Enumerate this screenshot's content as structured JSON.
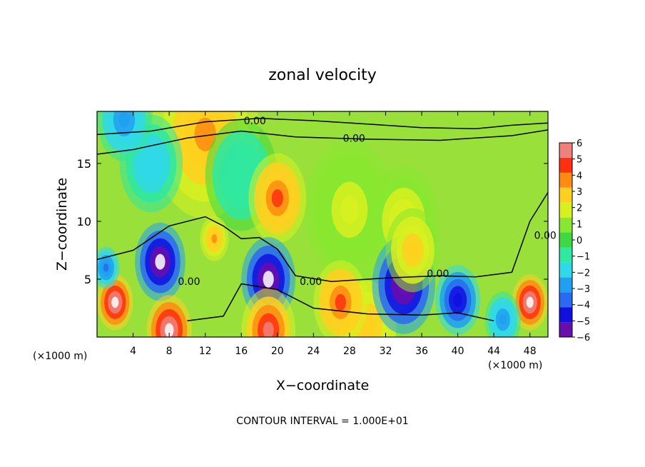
{
  "chart_data": {
    "type": "heatmap",
    "title": "zonal velocity",
    "xlabel": "X−coordinate",
    "ylabel": "Z−coordinate",
    "x_unit_left": "(×1000 m)",
    "x_unit_right": "(×1000 m)",
    "xlim": [
      0,
      50
    ],
    "ylim": [
      0,
      19.5
    ],
    "xticks": [
      4,
      8,
      12,
      16,
      20,
      24,
      28,
      32,
      36,
      40,
      44,
      48
    ],
    "yticks": [
      5,
      10,
      15
    ],
    "footer": "CONTOUR INTERVAL = 1.000E+01",
    "colorbar": {
      "min": -6,
      "max": 6,
      "ticks": [
        6,
        5,
        4,
        3,
        2,
        1,
        0,
        -1,
        -2,
        -3,
        -4,
        -5,
        -6
      ],
      "colors": [
        "#6a0dad",
        "#1010e0",
        "#2a6af0",
        "#20a0f0",
        "#30d8e8",
        "#30e8a0",
        "#40d840",
        "#88e830",
        "#d8f020",
        "#ffd020",
        "#ff8c10",
        "#ff3010",
        "#f0807a"
      ]
    },
    "contour_labels": [
      {
        "text": "0.00",
        "x": 17.5,
        "y": 18.7
      },
      {
        "text": "0.00",
        "x": 28.5,
        "y": 17.2
      },
      {
        "text": "0.00",
        "x": 10.2,
        "y": 4.8
      },
      {
        "text": "0.00",
        "x": 23.7,
        "y": 4.8
      },
      {
        "text": "0.00",
        "x": 37.8,
        "y": 5.5
      },
      {
        "text": "0.00",
        "x": 49.7,
        "y": 8.8
      }
    ],
    "field_features": [
      {
        "x": 20,
        "y": 12,
        "r": 3.2,
        "v": 4.5
      },
      {
        "x": 13,
        "y": 8.5,
        "r": 1.6,
        "v": 3.5
      },
      {
        "x": 35,
        "y": 7.5,
        "r": 3.0,
        "v": 2.8
      },
      {
        "x": 34,
        "y": 10,
        "r": 4.0,
        "v": 2.0
      },
      {
        "x": 28,
        "y": 11,
        "r": 5.0,
        "v": 1.8
      },
      {
        "x": 12,
        "y": 17.5,
        "r": 6.0,
        "v": 3.5
      },
      {
        "x": 6,
        "y": 15,
        "r": 3.5,
        "v": -2.0
      },
      {
        "x": 16,
        "y": 14,
        "r": 4.0,
        "v": -1.0
      },
      {
        "x": 3,
        "y": 18.8,
        "r": 3.0,
        "v": -3.0
      },
      {
        "x": 7,
        "y": 6.5,
        "r": 2.8,
        "v": -6.5
      },
      {
        "x": 19,
        "y": 5.0,
        "r": 3.0,
        "v": -7.0
      },
      {
        "x": 34,
        "y": 4.5,
        "r": 3.5,
        "v": -6.0
      },
      {
        "x": 40,
        "y": 3.2,
        "r": 2.5,
        "v": -5.0
      },
      {
        "x": 27,
        "y": 3.0,
        "r": 3.0,
        "v": 4.5
      },
      {
        "x": 2,
        "y": 3.0,
        "r": 2.0,
        "v": 6.5
      },
      {
        "x": 48,
        "y": 3.0,
        "r": 2.0,
        "v": 6.5
      },
      {
        "x": 8,
        "y": 0.6,
        "r": 2.5,
        "v": 6.5
      },
      {
        "x": 19,
        "y": 0.6,
        "r": 3.0,
        "v": 5.5
      },
      {
        "x": 30,
        "y": 1.0,
        "r": 4.0,
        "v": 3.0
      },
      {
        "x": 45,
        "y": 1.5,
        "r": 2.0,
        "v": -3.0
      },
      {
        "x": 1,
        "y": 6.0,
        "r": 1.5,
        "v": -3.5
      }
    ]
  }
}
